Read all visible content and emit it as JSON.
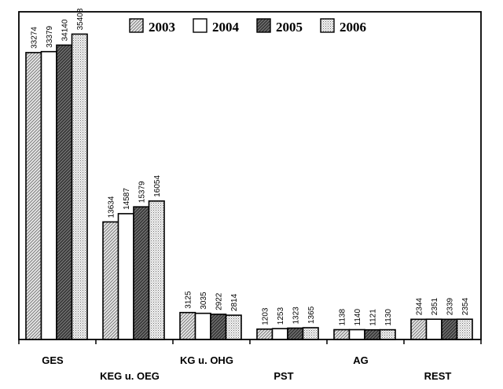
{
  "chart_data": {
    "type": "bar",
    "categories": [
      "GES",
      "KEG u. OEG",
      "KG u. OHG",
      "PST",
      "AG",
      "REST"
    ],
    "series": [
      {
        "name": "2003",
        "values": [
          33274,
          13634,
          3125,
          1203,
          1138,
          2344
        ],
        "pattern": "diag-light"
      },
      {
        "name": "2004",
        "values": [
          33379,
          14587,
          3035,
          1253,
          1140,
          2351
        ],
        "pattern": "white"
      },
      {
        "name": "2005",
        "values": [
          34140,
          15379,
          2922,
          1323,
          1121,
          2339
        ],
        "pattern": "diag-dark"
      },
      {
        "name": "2006",
        "values": [
          35408,
          16054,
          2814,
          1365,
          1130,
          2354
        ],
        "pattern": "dots"
      }
    ],
    "ylim": [
      0,
      38000
    ],
    "grid": false,
    "legend_position": "top-center",
    "value_labels": true,
    "title": "",
    "xlabel": "",
    "ylabel": ""
  }
}
